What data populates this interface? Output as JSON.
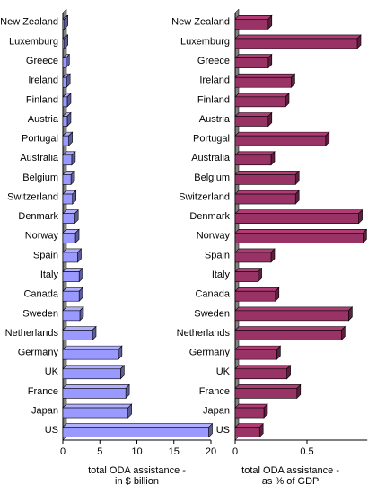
{
  "chart_data": [
    {
      "type": "hbar3d",
      "categories": [
        "New Zealand",
        "Luxemburg",
        "Greece",
        "Ireland",
        "Finland",
        "Austria",
        "Portugal",
        "Australia",
        "Belgium",
        "Switzerland",
        "Denmark",
        "Norway",
        "Spain",
        "Italy",
        "Canada",
        "Sweden",
        "Netherlands",
        "Germany",
        "UK",
        "France",
        "Japan",
        "US"
      ],
      "values": [
        0.2,
        0.2,
        0.4,
        0.5,
        0.6,
        0.6,
        0.8,
        1.2,
        1.1,
        1.3,
        1.6,
        1.7,
        2.0,
        2.2,
        2.2,
        2.3,
        4.0,
        7.5,
        7.8,
        8.5,
        8.8,
        19.7
      ],
      "color": "#9999ff",
      "xlim": [
        0,
        20
      ],
      "xticks": [
        0,
        5,
        10,
        15,
        20
      ],
      "xlabel": [
        "total ODA assistance -",
        "in $ billion"
      ]
    },
    {
      "type": "hbar3d",
      "categories": [
        "New Zealand",
        "Luxemburg",
        "Greece",
        "Ireland",
        "Finland",
        "Austria",
        "Portugal",
        "Australia",
        "Belgium",
        "Switzerland",
        "Denmark",
        "Norway",
        "Spain",
        "Italy",
        "Canada",
        "Sweden",
        "Netherlands",
        "Germany",
        "UK",
        "France",
        "Japan",
        "US"
      ],
      "values": [
        0.23,
        0.85,
        0.23,
        0.39,
        0.35,
        0.23,
        0.63,
        0.25,
        0.42,
        0.42,
        0.86,
        0.89,
        0.25,
        0.16,
        0.28,
        0.79,
        0.74,
        0.29,
        0.36,
        0.43,
        0.2,
        0.17
      ],
      "color": "#993366",
      "xlim": [
        0,
        0.92
      ],
      "xticks": [
        0,
        0.5
      ],
      "xlabel": [
        "total ODA assistance -",
        "as % of GDP"
      ]
    }
  ]
}
